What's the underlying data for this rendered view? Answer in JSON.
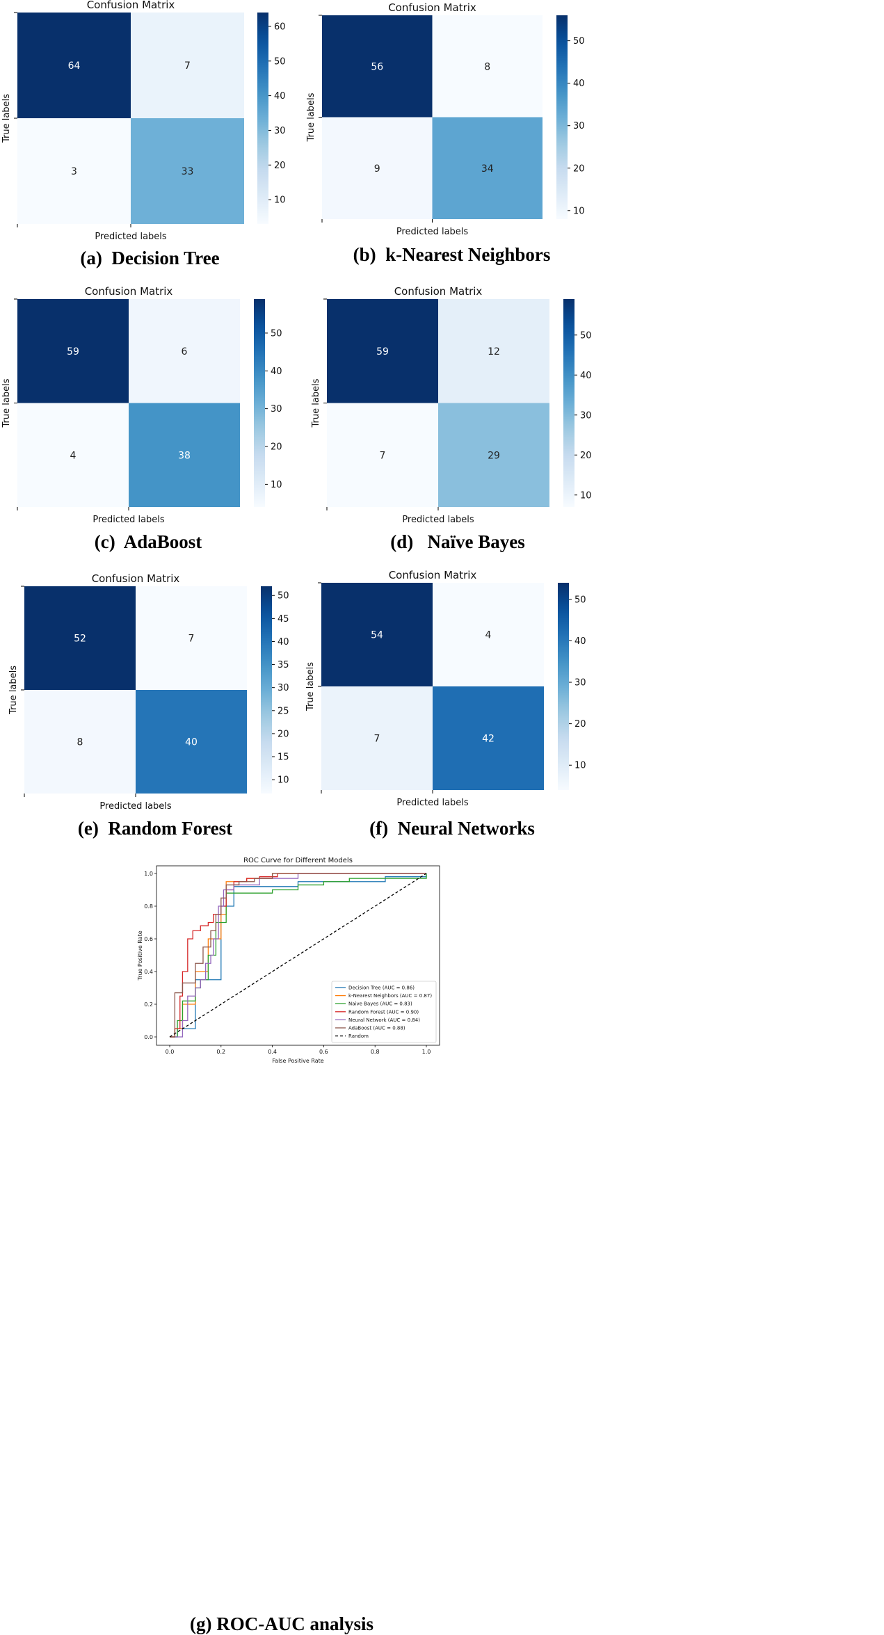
{
  "panels": [
    {
      "caption": "(a)  Decision Tree",
      "chart_data": {
        "type": "heatmap",
        "title": "Confusion Matrix",
        "xlabel": "Predicted labels",
        "ylabel": "True labels",
        "matrix": [
          [
            64,
            7
          ],
          [
            3,
            33
          ]
        ],
        "colorbar": {
          "min": 3,
          "max": 64,
          "ticks": [
            10,
            20,
            30,
            40,
            50,
            60
          ]
        }
      }
    },
    {
      "caption": "(b)  k-Nearest Neighbors",
      "chart_data": {
        "type": "heatmap",
        "title": "Confusion Matrix",
        "xlabel": "Predicted labels",
        "ylabel": "True labels",
        "matrix": [
          [
            56,
            8
          ],
          [
            9,
            34
          ]
        ],
        "colorbar": {
          "min": 8,
          "max": 56,
          "ticks": [
            10,
            20,
            30,
            40,
            50
          ]
        }
      }
    },
    {
      "caption": "(c)  AdaBoost",
      "chart_data": {
        "type": "heatmap",
        "title": "Confusion Matrix",
        "xlabel": "Predicted labels",
        "ylabel": "True labels",
        "matrix": [
          [
            59,
            6
          ],
          [
            4,
            38
          ]
        ],
        "colorbar": {
          "min": 4,
          "max": 59,
          "ticks": [
            10,
            20,
            30,
            40,
            50
          ]
        }
      }
    },
    {
      "caption": "(d)   Naïve Bayes",
      "chart_data": {
        "type": "heatmap",
        "title": "Confusion Matrix",
        "xlabel": "Predicted labels",
        "ylabel": "True labels",
        "matrix": [
          [
            59,
            12
          ],
          [
            7,
            29
          ]
        ],
        "colorbar": {
          "min": 7,
          "max": 59,
          "ticks": [
            10,
            20,
            30,
            40,
            50
          ]
        }
      }
    },
    {
      "caption": "(e)  Random Forest",
      "chart_data": {
        "type": "heatmap",
        "title": "Confusion Matrix",
        "xlabel": "Predicted labels",
        "ylabel": "True labels",
        "matrix": [
          [
            52,
            7
          ],
          [
            8,
            40
          ]
        ],
        "colorbar": {
          "min": 7,
          "max": 52,
          "ticks": [
            10,
            15,
            20,
            25,
            30,
            35,
            40,
            45,
            50
          ]
        }
      }
    },
    {
      "caption": "(f)  Neural Networks",
      "chart_data": {
        "type": "heatmap",
        "title": "Confusion Matrix",
        "xlabel": "Predicted labels",
        "ylabel": "True labels",
        "matrix": [
          [
            54,
            4
          ],
          [
            7,
            42
          ]
        ],
        "colorbar": {
          "min": 4,
          "max": 54,
          "ticks": [
            10,
            20,
            30,
            40,
            50
          ]
        }
      }
    }
  ],
  "roc": {
    "caption": "(g) ROC-AUC analysis",
    "chart_data": {
      "type": "line",
      "title": "ROC Curve for Different Models",
      "xlabel": "False Positive Rate",
      "ylabel": "True Positive Rate",
      "xlim": [
        0.0,
        1.0
      ],
      "ylim": [
        0.0,
        1.0
      ],
      "xticks": [
        "0.0",
        "0.2",
        "0.4",
        "0.6",
        "0.8",
        "1.0"
      ],
      "yticks": [
        "0.0",
        "0.2",
        "0.4",
        "0.6",
        "0.8",
        "1.0"
      ],
      "legend_position": "lower-right",
      "series": [
        {
          "name": "Decision Tree (AUC = 0.86)",
          "color": "#1f77b4",
          "x": [
            0,
            0.03,
            0.1,
            0.2,
            0.25,
            0.5,
            0.84,
            1.0
          ],
          "y": [
            0,
            0.05,
            0.35,
            0.8,
            0.92,
            0.95,
            0.98,
            1.0
          ]
        },
        {
          "name": "k-Nearest Neighbors (AUC = 0.87)",
          "color": "#ff7f0e",
          "x": [
            0,
            0.02,
            0.05,
            0.1,
            0.15,
            0.2,
            0.22,
            0.3,
            0.4,
            0.5,
            1.0
          ],
          "y": [
            0,
            0.05,
            0.2,
            0.4,
            0.6,
            0.75,
            0.95,
            0.97,
            1.0,
            1.0,
            1.0
          ]
        },
        {
          "name": "Naive Bayes (AUC = 0.83)",
          "color": "#2ca02c",
          "x": [
            0,
            0.03,
            0.05,
            0.1,
            0.12,
            0.15,
            0.18,
            0.22,
            0.3,
            0.4,
            0.5,
            0.6,
            0.7,
            1.0
          ],
          "y": [
            0,
            0.1,
            0.22,
            0.3,
            0.35,
            0.5,
            0.7,
            0.88,
            0.88,
            0.9,
            0.93,
            0.95,
            0.97,
            1.0
          ]
        },
        {
          "name": "Random Forest (AUC = 0.90)",
          "color": "#d62728",
          "x": [
            0,
            0.02,
            0.04,
            0.05,
            0.07,
            0.09,
            0.12,
            0.15,
            0.17,
            0.2,
            0.22,
            0.25,
            0.3,
            0.35,
            0.42,
            0.6,
            1.0
          ],
          "y": [
            0,
            0.05,
            0.25,
            0.4,
            0.6,
            0.65,
            0.68,
            0.7,
            0.75,
            0.8,
            0.9,
            0.95,
            0.97,
            0.98,
            1.0,
            1.0,
            1.0
          ]
        },
        {
          "name": "Neural Network (AUC = 0.84)",
          "color": "#9467bd",
          "x": [
            0,
            0.05,
            0.07,
            0.1,
            0.12,
            0.14,
            0.16,
            0.17,
            0.19,
            0.21,
            0.25,
            0.35,
            0.5,
            1.0
          ],
          "y": [
            0,
            0.1,
            0.25,
            0.3,
            0.35,
            0.45,
            0.5,
            0.6,
            0.8,
            0.9,
            0.93,
            0.97,
            1.0,
            1.0
          ]
        },
        {
          "name": "AdaBoost (AUC = 0.88)",
          "color": "#8c564b",
          "x": [
            0,
            0.02,
            0.05,
            0.1,
            0.13,
            0.16,
            0.18,
            0.2,
            0.22,
            0.27,
            0.33,
            0.4,
            0.5,
            0.6,
            0.85,
            1.0
          ],
          "y": [
            0,
            0.27,
            0.33,
            0.45,
            0.55,
            0.65,
            0.75,
            0.85,
            0.93,
            0.95,
            0.97,
            1.0,
            1.0,
            1.0,
            1.0,
            1.0
          ]
        },
        {
          "name": "Random",
          "color": "#000000",
          "dashed": true,
          "x": [
            0,
            1
          ],
          "y": [
            0,
            1
          ]
        }
      ]
    }
  }
}
